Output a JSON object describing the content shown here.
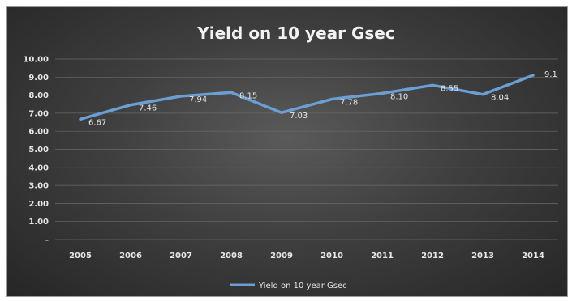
{
  "chart_data": {
    "type": "line",
    "title": "Yield on 10 year Gsec",
    "categories": [
      "2005",
      "2006",
      "2007",
      "2008",
      "2009",
      "2010",
      "2011",
      "2012",
      "2013",
      "2014"
    ],
    "series": [
      {
        "name": "Yield on 10 year Gsec",
        "values": [
          6.67,
          7.46,
          7.94,
          8.15,
          7.03,
          7.78,
          8.1,
          8.55,
          8.04,
          9.1
        ],
        "labels": [
          "6.67",
          "7.46",
          "7.94",
          "8.15",
          "7.03",
          "7.78",
          "8.10",
          "8.55",
          "8.04",
          "9.1"
        ],
        "color": "#6a9fd4"
      }
    ],
    "yticks": [
      "-",
      "1.00",
      "2.00",
      "3.00",
      "4.00",
      "5.00",
      "6.00",
      "7.00",
      "8.00",
      "9.00",
      "10.00"
    ],
    "ylim": [
      0,
      10
    ],
    "grid": true,
    "legend_position": "bottom"
  }
}
